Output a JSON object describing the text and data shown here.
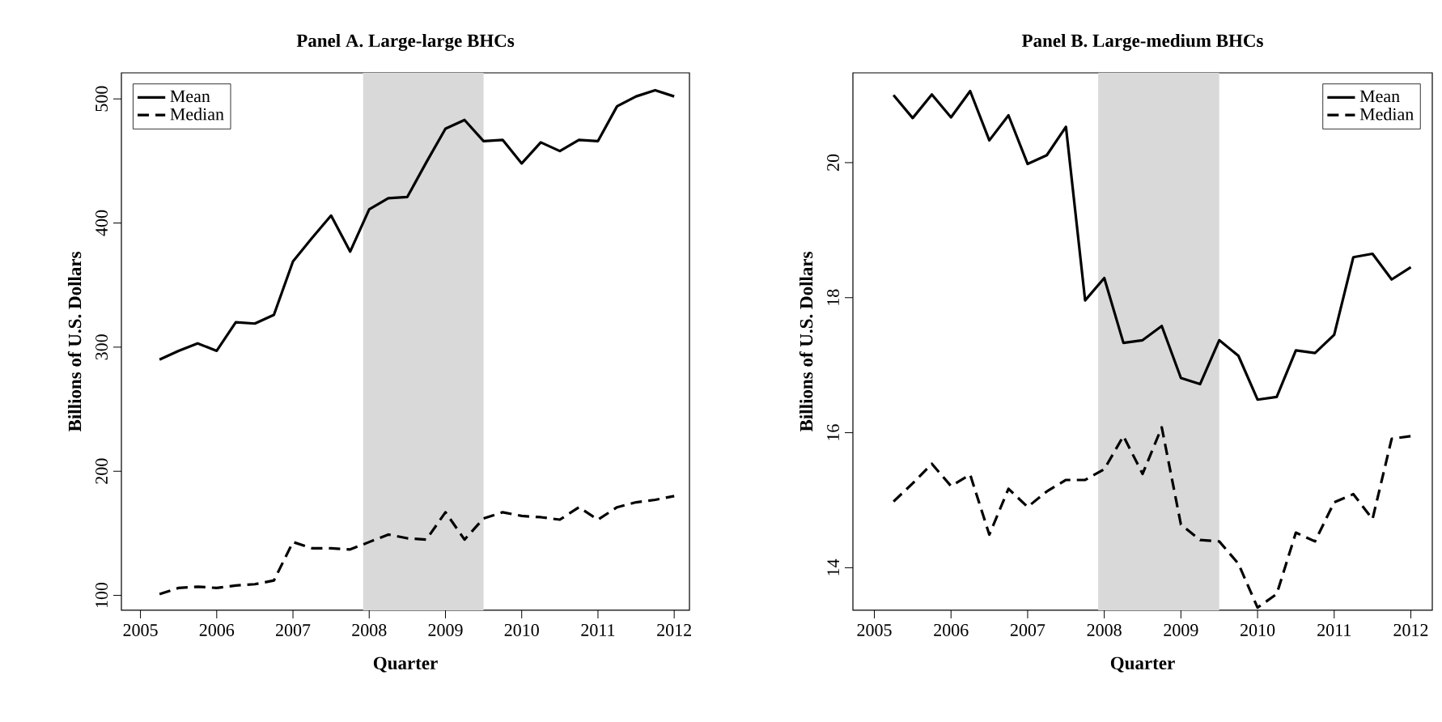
{
  "chart_data": [
    {
      "type": "line",
      "title": "Panel A. Large-large BHCs",
      "xlabel": "Quarter",
      "ylabel": "Billions of U.S. Dollars",
      "x": [
        2005.25,
        2005.5,
        2005.75,
        2006,
        2006.25,
        2006.5,
        2006.75,
        2007,
        2007.25,
        2007.5,
        2007.75,
        2008,
        2008.25,
        2008.5,
        2008.75,
        2009,
        2009.25,
        2009.5,
        2009.75,
        2010,
        2010.25,
        2010.5,
        2010.75,
        2011,
        2011.25,
        2011.5,
        2011.75,
        2012
      ],
      "series": [
        {
          "name": "Mean",
          "color": "#000000",
          "line_style": "solid",
          "values": [
            290,
            297,
            303,
            297,
            320,
            319,
            326,
            369,
            388,
            406,
            377,
            411,
            420,
            421,
            449,
            476,
            483,
            466,
            467,
            448,
            465,
            458,
            467,
            466,
            494,
            502,
            507,
            502
          ]
        },
        {
          "name": "Median",
          "color": "#000000",
          "line_style": "dashed",
          "values": [
            101,
            106,
            107,
            106,
            108,
            109,
            112,
            143,
            138,
            138,
            137,
            143,
            149,
            146,
            145,
            167,
            145,
            162,
            167,
            164,
            163,
            161,
            171,
            161,
            171,
            175,
            177,
            180
          ]
        }
      ],
      "xlim": [
        2004.75,
        2012.2
      ],
      "ylim": [
        88,
        521
      ],
      "xticks": [
        2005,
        2006,
        2007,
        2008,
        2009,
        2010,
        2011,
        2012
      ],
      "yticks": [
        100,
        200,
        300,
        400,
        500
      ],
      "bands": [
        {
          "axis": "x",
          "from": 2007.92,
          "to": 2009.5,
          "color": "#d9d9d9"
        }
      ],
      "legend": "top left",
      "grid": false
    },
    {
      "type": "line",
      "title": "Panel B. Large-medium BHCs",
      "xlabel": "Quarter",
      "ylabel": "Billions of U.S. Dollars",
      "x": [
        2005.25,
        2005.5,
        2005.75,
        2006,
        2006.25,
        2006.5,
        2006.75,
        2007,
        2007.25,
        2007.5,
        2007.75,
        2008,
        2008.25,
        2008.5,
        2008.75,
        2009,
        2009.25,
        2009.5,
        2009.75,
        2010,
        2010.25,
        2010.5,
        2010.75,
        2011,
        2011.25,
        2011.5,
        2011.75,
        2012
      ],
      "series": [
        {
          "name": "Mean",
          "color": "#000000",
          "line_style": "solid",
          "values": [
            21.0,
            20.66,
            21.01,
            20.67,
            21.06,
            20.33,
            20.7,
            19.98,
            20.11,
            20.53,
            17.96,
            18.29,
            17.33,
            17.37,
            17.58,
            16.81,
            16.72,
            17.37,
            17.14,
            16.49,
            16.53,
            17.22,
            17.18,
            17.45,
            18.6,
            18.65,
            18.27,
            18.45
          ]
        },
        {
          "name": "Median",
          "color": "#000000",
          "line_style": "dashed",
          "values": [
            14.98,
            15.25,
            15.54,
            15.21,
            15.38,
            14.49,
            15.17,
            14.9,
            15.13,
            15.3,
            15.3,
            15.46,
            15.95,
            15.39,
            16.08,
            14.64,
            14.41,
            14.39,
            14.06,
            13.41,
            13.61,
            14.52,
            14.39,
            14.97,
            15.09,
            14.72,
            15.91,
            15.95
          ]
        }
      ],
      "xlim": [
        2004.72,
        2012.28
      ],
      "ylim": [
        13.37,
        21.33
      ],
      "xticks": [
        2005,
        2006,
        2007,
        2008,
        2009,
        2010,
        2011,
        2012
      ],
      "yticks": [
        14,
        16,
        18,
        20
      ],
      "bands": [
        {
          "axis": "x",
          "from": 2007.92,
          "to": 2009.5,
          "color": "#d9d9d9"
        }
      ],
      "legend": "top right",
      "grid": false
    }
  ]
}
